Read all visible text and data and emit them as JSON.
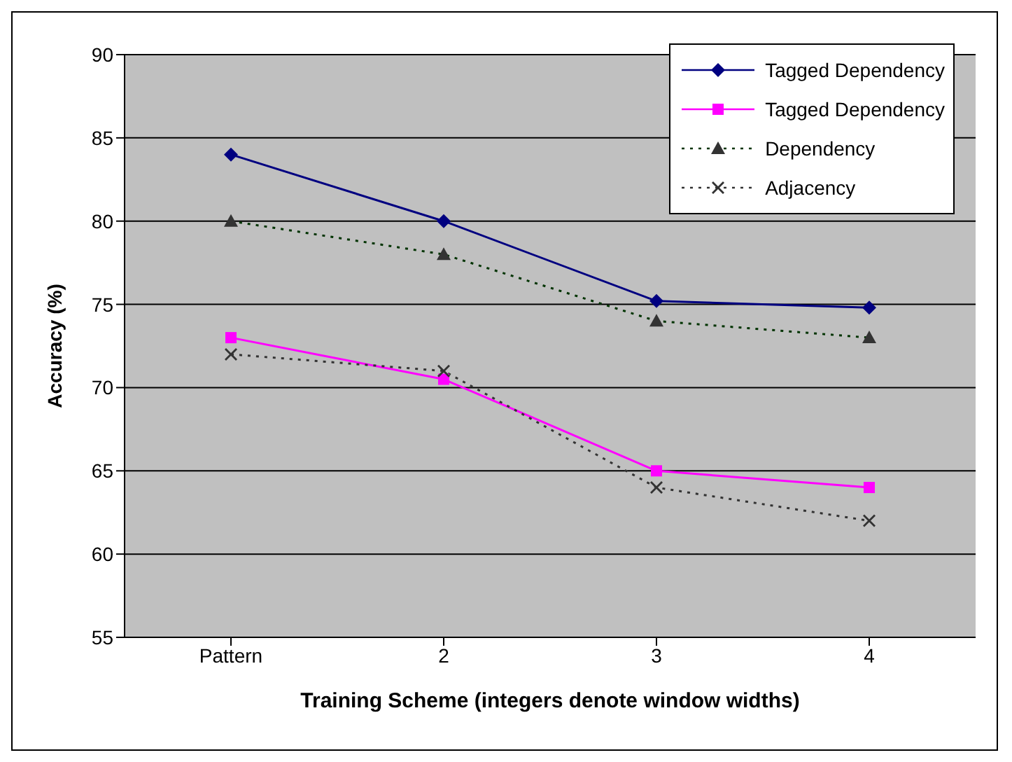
{
  "chart_data": {
    "type": "line",
    "xlabel": "Training Scheme (integers denote window widths)",
    "ylabel": "Accuracy (%)",
    "categories": [
      "Pattern",
      "2",
      "3",
      "4"
    ],
    "ylim": [
      55,
      90
    ],
    "yticks": [
      55,
      60,
      65,
      70,
      75,
      80,
      85,
      90
    ],
    "grid": "y",
    "legend": "top right",
    "series": [
      {
        "name": "Tagged Dependency",
        "color": "#000080",
        "marker": "diamond",
        "line_style": "solid",
        "values": [
          84,
          80,
          75.2,
          74.8
        ]
      },
      {
        "name": "Tagged Dependency",
        "color": "#ff00ff",
        "marker": "square",
        "line_style": "solid",
        "values": [
          73,
          70.5,
          65,
          64
        ]
      },
      {
        "name": "Dependency",
        "color": "#003300",
        "marker": "triangle",
        "line_style": "dotted",
        "values": [
          80,
          78,
          74,
          73
        ]
      },
      {
        "name": "Adjacency",
        "color": "#333333",
        "marker": "cross",
        "line_style": "dotted",
        "values": [
          72,
          71,
          64,
          62
        ]
      }
    ]
  }
}
